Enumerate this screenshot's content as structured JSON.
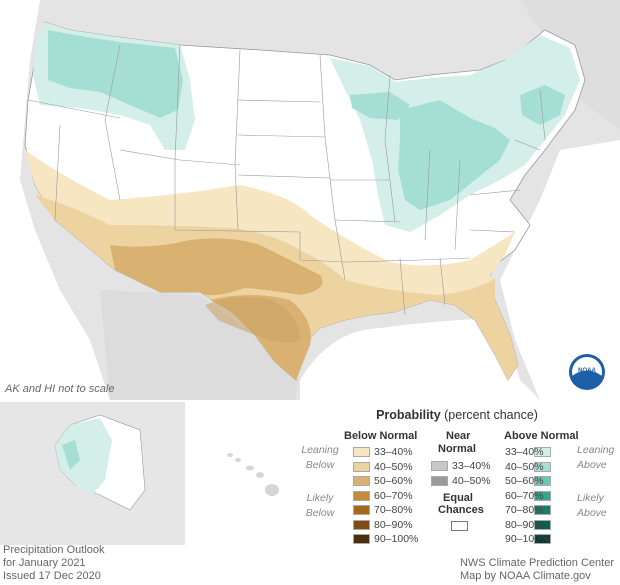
{
  "map": {
    "not_to_scale_note": "AK and HI not to scale"
  },
  "legend": {
    "title_bold": "Probability",
    "title_rest": " (percent chance)",
    "below_header": "Below Normal",
    "near_header_1": "Near",
    "near_header_2": "Normal",
    "above_header": "Above Normal",
    "leaning_below_1": "Leaning",
    "leaning_below_2": "Below",
    "likely_below_1": "Likely",
    "likely_below_2": "Below",
    "leaning_above_1": "Leaning",
    "leaning_above_2": "Above",
    "likely_above_1": "Likely",
    "likely_above_2": "Above",
    "equal_1": "Equal",
    "equal_2": "Chances",
    "below": [
      {
        "label": "33–40%",
        "color": "#f6e6c2"
      },
      {
        "label": "40–50%",
        "color": "#ecd3a0"
      },
      {
        "label": "50–60%",
        "color": "#d9b272"
      },
      {
        "label": "60–70%",
        "color": "#c38b3b"
      },
      {
        "label": "70–80%",
        "color": "#a4691f"
      },
      {
        "label": "80–90%",
        "color": "#7e4c14"
      },
      {
        "label": "90–100%",
        "color": "#4e2d0a"
      }
    ],
    "near": [
      {
        "label": "33–40%",
        "color": "#c8c8c8"
      },
      {
        "label": "40–50%",
        "color": "#9a9a9a"
      }
    ],
    "above": [
      {
        "label": "33–40%",
        "color": "#d4efe9"
      },
      {
        "label": "40–50%",
        "color": "#a5dfd4"
      },
      {
        "label": "50–60%",
        "color": "#6cc6b5"
      },
      {
        "label": "60–70%",
        "color": "#36a592"
      },
      {
        "label": "70–80%",
        "color": "#1a7e6c"
      },
      {
        "label": "80–90%",
        "color": "#0b5e4e"
      },
      {
        "label": "90–100%",
        "color": "#053d33"
      }
    ]
  },
  "footer": {
    "left_line1": "Precipitation Outlook",
    "left_line2": "for January 2021",
    "left_line3": "Issued 17 Dec 2020",
    "right_line1": "NWS Climate Prediction Center",
    "right_line2": "Map by NOAA Climate.gov"
  },
  "logo": {
    "text": "NOAA"
  }
}
